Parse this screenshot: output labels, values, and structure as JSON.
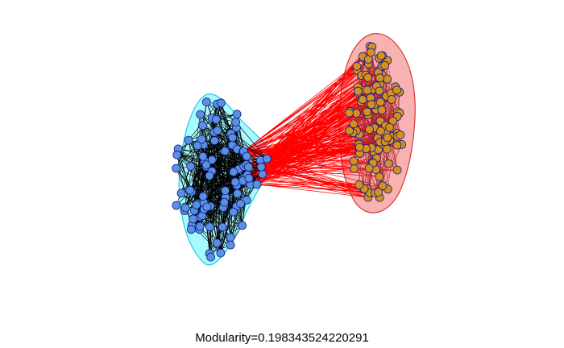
{
  "title": "Modularity=0.198343524220291",
  "colors": {
    "community_left_fill": "#a6fbff",
    "community_left_stroke": "#26c6da",
    "community_right_fill": "#f9b2b2",
    "community_right_stroke": "#d13a3a",
    "node_left": "#5b8fe0",
    "node_right": "#d7901e",
    "node_stroke": "#0a1f88",
    "within_edges": "#000000",
    "between_edges": "#ff0000",
    "label": "#000080"
  },
  "graph": {
    "communities": [
      {
        "id": 1,
        "shape": "left-lens",
        "color": "cyan"
      },
      {
        "id": 2,
        "shape": "right-oval",
        "color": "red"
      }
    ]
  }
}
